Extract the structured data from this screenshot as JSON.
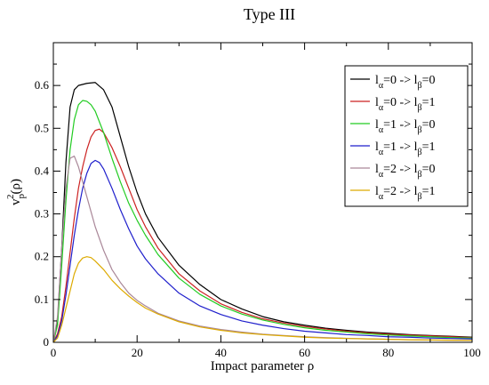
{
  "chart_data": {
    "type": "line",
    "title": "Type III",
    "xlabel": "Impact parameter ρ",
    "ylabel": {
      "base": "v",
      "sub": "p",
      "sup": "2",
      "arg": "(ρ)"
    },
    "xlim": [
      0,
      100
    ],
    "ylim": [
      0,
      0.7
    ],
    "xticks": [
      0,
      20,
      40,
      60,
      80,
      100
    ],
    "yticks": [
      0,
      0.1,
      0.2,
      0.3,
      0.4,
      0.5,
      0.6
    ],
    "grid": false,
    "legend_position": "top-right",
    "series": [
      {
        "name": "l_α=0 -> l_β=0",
        "la": "0",
        "lb": "0",
        "color": "#000000",
        "points": [
          [
            0,
            0
          ],
          [
            1,
            0.05
          ],
          [
            2,
            0.22
          ],
          [
            3,
            0.42
          ],
          [
            4,
            0.55
          ],
          [
            5,
            0.59
          ],
          [
            6,
            0.6
          ],
          [
            8,
            0.605
          ],
          [
            10,
            0.607
          ],
          [
            12,
            0.59
          ],
          [
            14,
            0.55
          ],
          [
            16,
            0.48
          ],
          [
            18,
            0.41
          ],
          [
            20,
            0.35
          ],
          [
            22,
            0.3
          ],
          [
            25,
            0.245
          ],
          [
            30,
            0.18
          ],
          [
            35,
            0.135
          ],
          [
            40,
            0.1
          ],
          [
            45,
            0.078
          ],
          [
            50,
            0.06
          ],
          [
            55,
            0.048
          ],
          [
            60,
            0.04
          ],
          [
            65,
            0.033
          ],
          [
            70,
            0.028
          ],
          [
            75,
            0.024
          ],
          [
            80,
            0.021
          ],
          [
            85,
            0.018
          ],
          [
            90,
            0.016
          ],
          [
            95,
            0.014
          ],
          [
            100,
            0.012
          ]
        ]
      },
      {
        "name": "l_α=0 -> l_β=1",
        "la": "0",
        "lb": "1",
        "color": "#cc2222",
        "points": [
          [
            0,
            0
          ],
          [
            1,
            0.02
          ],
          [
            2,
            0.06
          ],
          [
            3,
            0.13
          ],
          [
            4,
            0.21
          ],
          [
            5,
            0.29
          ],
          [
            6,
            0.36
          ],
          [
            7,
            0.41
          ],
          [
            8,
            0.45
          ],
          [
            9,
            0.48
          ],
          [
            10,
            0.495
          ],
          [
            11,
            0.498
          ],
          [
            12,
            0.49
          ],
          [
            14,
            0.455
          ],
          [
            16,
            0.41
          ],
          [
            18,
            0.36
          ],
          [
            20,
            0.31
          ],
          [
            22,
            0.27
          ],
          [
            25,
            0.22
          ],
          [
            30,
            0.16
          ],
          [
            35,
            0.12
          ],
          [
            40,
            0.09
          ],
          [
            45,
            0.07
          ],
          [
            50,
            0.055
          ],
          [
            55,
            0.045
          ],
          [
            60,
            0.037
          ],
          [
            65,
            0.031
          ],
          [
            70,
            0.026
          ],
          [
            75,
            0.022
          ],
          [
            80,
            0.019
          ],
          [
            85,
            0.017
          ],
          [
            90,
            0.015
          ],
          [
            95,
            0.013
          ],
          [
            100,
            0.011
          ]
        ]
      },
      {
        "name": "l_α=1 -> l_β=0",
        "la": "1",
        "lb": "0",
        "color": "#22cc22",
        "points": [
          [
            0,
            0
          ],
          [
            1,
            0.04
          ],
          [
            2,
            0.18
          ],
          [
            3,
            0.33
          ],
          [
            4,
            0.45
          ],
          [
            5,
            0.52
          ],
          [
            6,
            0.555
          ],
          [
            7,
            0.565
          ],
          [
            8,
            0.563
          ],
          [
            9,
            0.555
          ],
          [
            10,
            0.54
          ],
          [
            12,
            0.49
          ],
          [
            14,
            0.43
          ],
          [
            16,
            0.375
          ],
          [
            18,
            0.325
          ],
          [
            20,
            0.285
          ],
          [
            22,
            0.25
          ],
          [
            25,
            0.205
          ],
          [
            30,
            0.15
          ],
          [
            35,
            0.112
          ],
          [
            40,
            0.085
          ],
          [
            45,
            0.066
          ],
          [
            50,
            0.052
          ],
          [
            55,
            0.042
          ],
          [
            60,
            0.034
          ],
          [
            65,
            0.028
          ],
          [
            70,
            0.024
          ],
          [
            75,
            0.02
          ],
          [
            80,
            0.017
          ],
          [
            85,
            0.015
          ],
          [
            90,
            0.013
          ],
          [
            95,
            0.011
          ],
          [
            100,
            0.01
          ]
        ]
      },
      {
        "name": "l_α=1 -> l_β=1",
        "la": "1",
        "lb": "1",
        "color": "#1f1fcc",
        "points": [
          [
            0,
            0
          ],
          [
            1,
            0.015
          ],
          [
            2,
            0.05
          ],
          [
            3,
            0.11
          ],
          [
            4,
            0.18
          ],
          [
            5,
            0.25
          ],
          [
            6,
            0.31
          ],
          [
            7,
            0.36
          ],
          [
            8,
            0.395
          ],
          [
            9,
            0.418
          ],
          [
            10,
            0.425
          ],
          [
            11,
            0.42
          ],
          [
            12,
            0.405
          ],
          [
            14,
            0.36
          ],
          [
            16,
            0.31
          ],
          [
            18,
            0.265
          ],
          [
            20,
            0.225
          ],
          [
            22,
            0.195
          ],
          [
            25,
            0.16
          ],
          [
            30,
            0.115
          ],
          [
            35,
            0.085
          ],
          [
            40,
            0.065
          ],
          [
            45,
            0.05
          ],
          [
            50,
            0.04
          ],
          [
            55,
            0.032
          ],
          [
            60,
            0.026
          ],
          [
            65,
            0.022
          ],
          [
            70,
            0.018
          ],
          [
            75,
            0.016
          ],
          [
            80,
            0.013
          ],
          [
            85,
            0.012
          ],
          [
            90,
            0.01
          ],
          [
            95,
            0.009
          ],
          [
            100,
            0.008
          ]
        ]
      },
      {
        "name": "l_α=2 -> l_β=0",
        "la": "2",
        "lb": "0",
        "color": "#aa8899",
        "points": [
          [
            0,
            0
          ],
          [
            1,
            0.06
          ],
          [
            2,
            0.22
          ],
          [
            3,
            0.36
          ],
          [
            4,
            0.43
          ],
          [
            5,
            0.435
          ],
          [
            6,
            0.41
          ],
          [
            7,
            0.375
          ],
          [
            8,
            0.34
          ],
          [
            9,
            0.305
          ],
          [
            10,
            0.27
          ],
          [
            12,
            0.215
          ],
          [
            14,
            0.17
          ],
          [
            16,
            0.14
          ],
          [
            18,
            0.115
          ],
          [
            20,
            0.098
          ],
          [
            22,
            0.085
          ],
          [
            25,
            0.068
          ],
          [
            30,
            0.05
          ],
          [
            35,
            0.038
          ],
          [
            40,
            0.03
          ],
          [
            45,
            0.024
          ],
          [
            50,
            0.019
          ],
          [
            55,
            0.016
          ],
          [
            60,
            0.013
          ],
          [
            65,
            0.011
          ],
          [
            70,
            0.0095
          ],
          [
            75,
            0.008
          ],
          [
            80,
            0.007
          ],
          [
            85,
            0.006
          ],
          [
            90,
            0.0055
          ],
          [
            95,
            0.005
          ],
          [
            100,
            0.0045
          ]
        ]
      },
      {
        "name": "l_α=2 -> l_β=1",
        "la": "2",
        "lb": "1",
        "color": "#ddaa00",
        "points": [
          [
            0,
            0
          ],
          [
            1,
            0.01
          ],
          [
            2,
            0.04
          ],
          [
            3,
            0.08
          ],
          [
            4,
            0.12
          ],
          [
            5,
            0.16
          ],
          [
            6,
            0.185
          ],
          [
            7,
            0.197
          ],
          [
            8,
            0.2
          ],
          [
            9,
            0.198
          ],
          [
            10,
            0.19
          ],
          [
            12,
            0.17
          ],
          [
            14,
            0.145
          ],
          [
            16,
            0.125
          ],
          [
            18,
            0.108
          ],
          [
            20,
            0.093
          ],
          [
            22,
            0.08
          ],
          [
            25,
            0.066
          ],
          [
            30,
            0.048
          ],
          [
            35,
            0.036
          ],
          [
            40,
            0.028
          ],
          [
            45,
            0.022
          ],
          [
            50,
            0.018
          ],
          [
            55,
            0.015
          ],
          [
            60,
            0.012
          ],
          [
            65,
            0.01
          ],
          [
            70,
            0.009
          ],
          [
            75,
            0.008
          ],
          [
            80,
            0.007
          ],
          [
            85,
            0.006
          ],
          [
            90,
            0.0055
          ],
          [
            95,
            0.005
          ],
          [
            100,
            0.0045
          ]
        ]
      }
    ]
  }
}
